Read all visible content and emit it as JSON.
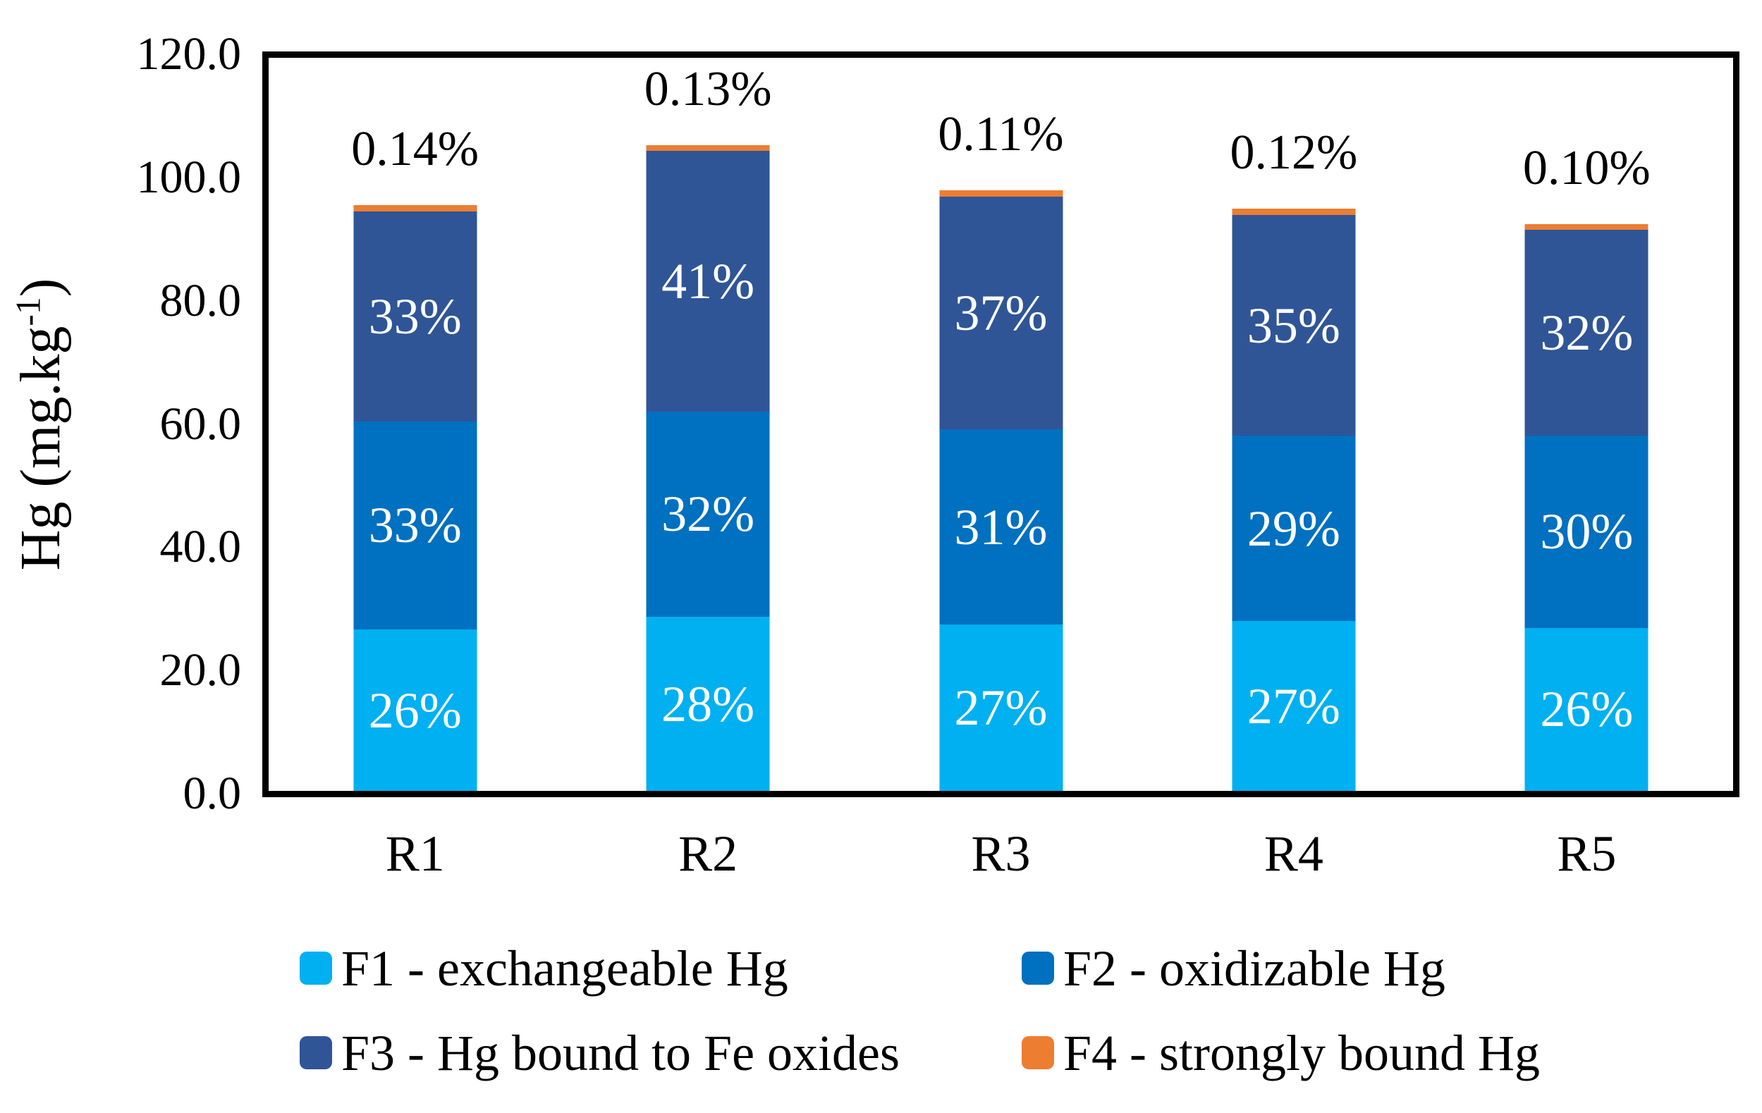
{
  "chart_data": {
    "type": "bar",
    "stacked": true,
    "title": "",
    "categories": [
      "R1",
      "R2",
      "R3",
      "R4",
      "R5"
    ],
    "series": [
      {
        "name": "F1 - exchangeable Hg",
        "color": "#00B0F0",
        "values": [
          26.4,
          28.5,
          27.2,
          27.8,
          26.7
        ],
        "percent_labels": [
          "26%",
          "28%",
          "27%",
          "27%",
          "26%"
        ]
      },
      {
        "name": "F2 - oxidizable Hg",
        "color": "#0070C0",
        "values": [
          34.1,
          33.6,
          32.0,
          30.3,
          31.5
        ],
        "percent_labels": [
          "33%",
          "32%",
          "31%",
          "29%",
          "30%"
        ]
      },
      {
        "name": "F3 - Hg bound to Fe oxides",
        "color": "#2F5597",
        "values": [
          34.4,
          42.7,
          38.1,
          36.2,
          33.7
        ],
        "percent_labels": [
          "33%",
          "41%",
          "37%",
          "35%",
          "32%"
        ]
      },
      {
        "name": "F4 - strongly bound Hg",
        "color": "#ED7D31",
        "values": [
          1.0,
          0.9,
          1.0,
          1.0,
          0.9
        ],
        "percent_labels": [
          "",
          "",
          "",
          "",
          ""
        ]
      }
    ],
    "top_labels": [
      "0.14%",
      "0.13%",
      "0.11%",
      "0.12%",
      "0.10%"
    ],
    "ylabel_parts": {
      "main": "Hg (mg.kg",
      "sup": "-1",
      "end": ")"
    },
    "ylabel_plain": "Hg (mg.kg-1)",
    "ylim": [
      0,
      120
    ],
    "ytick_step": 20,
    "ytick_labels": [
      "120.0",
      "100.0",
      "80.0",
      "60.0",
      "40.0",
      "20.0",
      "0.0"
    ],
    "grid": false,
    "legend_position": "bottom",
    "bar_label_color": "#FFFFFF",
    "axis_color": "#000000",
    "background_color": "#FFFFFF"
  }
}
